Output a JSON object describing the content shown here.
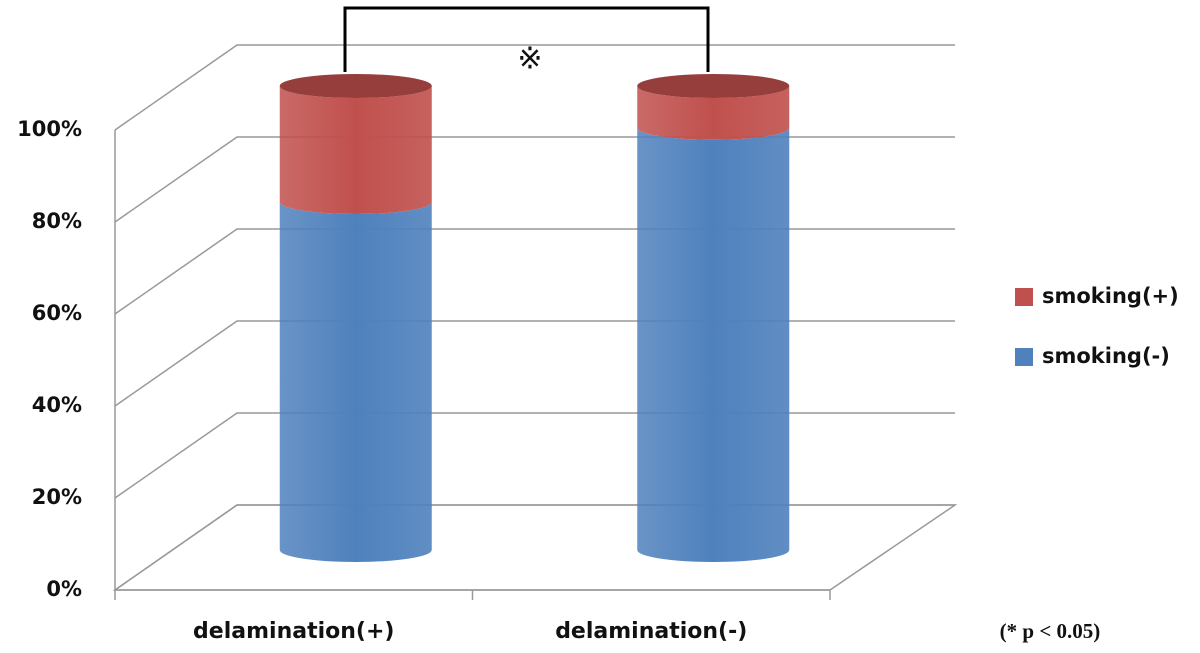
{
  "chart_data": {
    "type": "bar3d_stacked",
    "categories": [
      "delamination(+)",
      "delamination(-)"
    ],
    "series": [
      {
        "name": "smoking(-)",
        "color": "#4f81bd",
        "values": [
          75,
          91
        ]
      },
      {
        "name": "smoking(+)",
        "color": "#c0504d",
        "values": [
          25,
          9
        ]
      }
    ],
    "ylim": [
      0,
      100
    ],
    "yticks": [
      {
        "value": 0,
        "label": "0%"
      },
      {
        "value": 20,
        "label": "20%"
      },
      {
        "value": 40,
        "label": "40%"
      },
      {
        "value": 60,
        "label": "60%"
      },
      {
        "value": 80,
        "label": "80%"
      },
      {
        "value": 100,
        "label": "100%"
      }
    ],
    "grid": true,
    "legend": "right",
    "annotations": [
      "※",
      "(* p < 0.05)"
    ]
  }
}
